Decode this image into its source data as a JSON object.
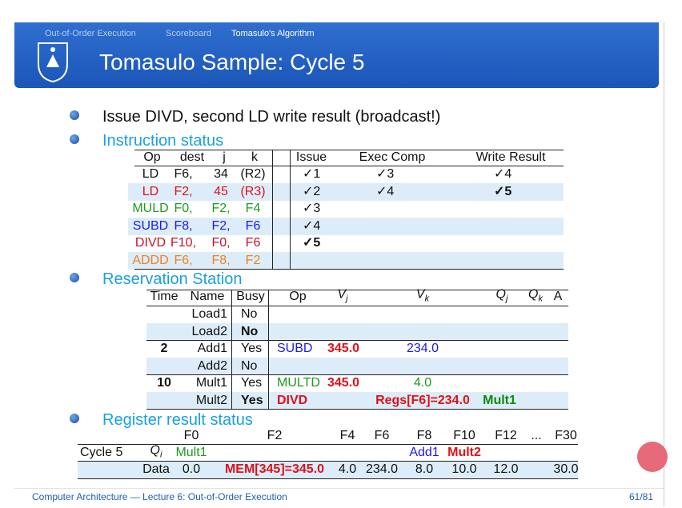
{
  "header": {
    "nav": [
      "Out-of-Order Execution",
      "Scoreboard",
      "Tomasulo's Algorithm"
    ],
    "title": "Tomasulo Sample: Cycle 5"
  },
  "bullets": [
    "Issue DIVD, second LD write result (broadcast!)",
    "Instruction status",
    "Reservation Station",
    "Register result status"
  ],
  "instruction_status": {
    "columns": [
      "Op",
      "dest",
      "j",
      "k",
      "Issue",
      "Exec Comp",
      "Write Result"
    ],
    "rows": [
      [
        "LD",
        "F6,",
        "34",
        "(R2)",
        "✓1",
        "✓3",
        "✓4"
      ],
      [
        "LD",
        "F2,",
        "45",
        "(R3)",
        "✓2",
        "✓4",
        "✓5"
      ],
      [
        "MULD",
        "F0,",
        "F2,",
        "F4",
        "✓3",
        null,
        null
      ],
      [
        "SUBD",
        "F8,",
        "F2,",
        "F6",
        "✓4",
        null,
        null
      ],
      [
        "DIVD",
        "F10,",
        "F0,",
        "F6",
        "✓5",
        null,
        null
      ],
      [
        "ADDD",
        "F6,",
        "F8,",
        "F2",
        null,
        null,
        null
      ]
    ]
  },
  "reservation_station": {
    "columns": [
      "Time",
      "Name",
      "Busy",
      "Op",
      {
        "base": "V",
        "sub": "j"
      },
      {
        "base": "V",
        "sub": "k"
      },
      {
        "base": "Q",
        "sub": "j"
      },
      {
        "base": "Q",
        "sub": "k"
      },
      "A"
    ],
    "rows": [
      [
        null,
        "Load1",
        "No",
        null,
        null,
        null,
        null,
        null,
        null
      ],
      [
        null,
        "Load2",
        "No",
        null,
        null,
        null,
        null,
        null,
        null
      ],
      [
        "2",
        "Add1",
        "Yes",
        "SUBD",
        "345.0",
        "234.0",
        null,
        null,
        null
      ],
      [
        null,
        "Add2",
        "No",
        null,
        null,
        null,
        null,
        null,
        null
      ],
      [
        "10",
        "Mult1",
        "Yes",
        "MULTD",
        "345.0",
        "4.0",
        null,
        null,
        null
      ],
      [
        null,
        "Mult2",
        "Yes",
        "DIVD",
        null,
        "Regs[F6]=234.0",
        "Mult1",
        null,
        null
      ]
    ]
  },
  "register_status": {
    "label": "Cycle 5",
    "columns": [
      "F0",
      "F2",
      "F4",
      "F6",
      "F8",
      "F10",
      "F12",
      "...",
      "F30"
    ],
    "rows": [
      {
        "name": {
          "base": "Q",
          "sub": "i"
        },
        "values": [
          "Mult1",
          null,
          null,
          null,
          "Add1",
          "Mult2",
          null,
          null,
          null
        ]
      },
      {
        "name": "Data",
        "values": [
          "0.0",
          "MEM[345]=345.0",
          "4.0",
          "234.0",
          "8.0",
          "10.0",
          "12.0",
          null,
          "30.0"
        ]
      }
    ]
  },
  "footer": {
    "left": "Computer Architecture — Lecture 6: Out-of-Order Execution",
    "page": "61/81"
  }
}
